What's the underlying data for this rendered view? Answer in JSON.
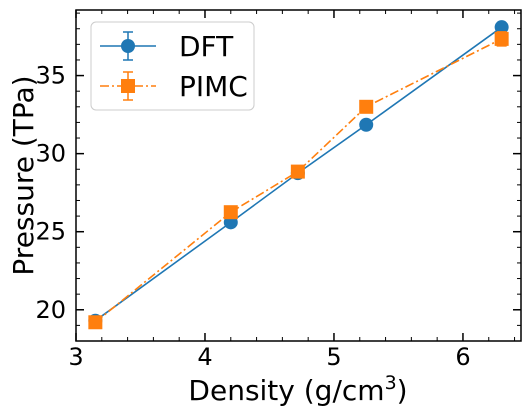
{
  "chart_data": {
    "type": "line",
    "xlabel": "Density (g/cm",
    "xlabel_sup": "3",
    "xlabel_end": ")",
    "ylabel": "Pressure (TPa)",
    "xlim": [
      3.0,
      6.45
    ],
    "ylim": [
      18.0,
      39.2
    ],
    "xticks": [
      3,
      4,
      5,
      6
    ],
    "xtick_labels": [
      "3",
      "4",
      "5",
      "6"
    ],
    "yticks": [
      20,
      25,
      30,
      35
    ],
    "ytick_labels": [
      "20",
      "25",
      "30",
      "35"
    ],
    "grid": false,
    "legend_position": "upper-left",
    "series": [
      {
        "name": "DFT",
        "color": "#1f77b4",
        "marker": "circle",
        "linestyle": "solid",
        "x": [
          3.15,
          4.2,
          4.72,
          5.25,
          6.3
        ],
        "y": [
          19.3,
          25.6,
          28.75,
          31.85,
          38.1
        ],
        "yerr": [
          0,
          0,
          0,
          0,
          0
        ]
      },
      {
        "name": "PIMC",
        "color": "#ff7f0e",
        "marker": "square",
        "linestyle": "dashdot",
        "x": [
          3.15,
          4.2,
          4.72,
          5.25,
          6.3
        ],
        "y": [
          19.2,
          26.25,
          28.85,
          33.0,
          37.35
        ],
        "yerr": [
          0.05,
          0.1,
          0.1,
          0.15,
          0.45
        ]
      }
    ]
  }
}
